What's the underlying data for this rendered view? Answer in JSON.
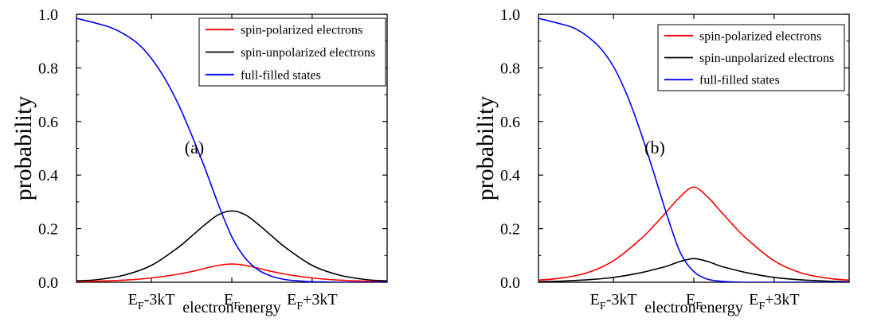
{
  "chart_data": [
    {
      "type": "line",
      "panel_label": "(a)",
      "xlabel": "electron energy",
      "ylabel": "probability",
      "x_unit": "kT",
      "xlim": [
        -5.8,
        5.8
      ],
      "ylim": [
        0,
        1.0
      ],
      "yticks": [
        0.0,
        0.2,
        0.4,
        0.6,
        0.8,
        1.0
      ],
      "ytick_labels": [
        "0.0",
        "0.2",
        "0.4",
        "0.6",
        "0.8",
        "1.0"
      ],
      "xticks": [
        {
          "x": -3,
          "base": "E",
          "sub": "F",
          "suffix": "-3kT"
        },
        {
          "x": 0,
          "base": "E",
          "sub": "F",
          "suffix": ""
        },
        {
          "x": 3,
          "base": "E",
          "sub": "F",
          "suffix": "+3kT"
        }
      ],
      "legend_position": "top-right",
      "series": [
        {
          "name": "spin-polarized electrons",
          "color": "#ff0000",
          "x": [
            -5.8,
            -5,
            -4,
            -3,
            -2,
            -1.5,
            -1,
            -0.5,
            0,
            0.5,
            1,
            1.5,
            2,
            3,
            4,
            5,
            5.8
          ],
          "y": [
            0.002,
            0.004,
            0.008,
            0.016,
            0.03,
            0.04,
            0.052,
            0.063,
            0.068,
            0.063,
            0.052,
            0.04,
            0.03,
            0.016,
            0.008,
            0.004,
            0.002
          ]
        },
        {
          "name": "spin-unpolarized electrons",
          "color": "#000000",
          "x": [
            -5.8,
            -5,
            -4,
            -3,
            -2,
            -1.5,
            -1,
            -0.5,
            0,
            0.5,
            1,
            1.5,
            2,
            3,
            4,
            5,
            5.8
          ],
          "y": [
            0.005,
            0.01,
            0.027,
            0.063,
            0.13,
            0.172,
            0.215,
            0.252,
            0.266,
            0.252,
            0.215,
            0.172,
            0.13,
            0.063,
            0.027,
            0.01,
            0.005
          ]
        },
        {
          "name": "full-filled states",
          "color": "#0000ff",
          "x": [
            -5.8,
            -5,
            -4.5,
            -4,
            -3.5,
            -3,
            -2.5,
            -2,
            -1.5,
            -1,
            -0.5,
            0,
            0.5,
            1,
            1.5,
            2,
            2.5,
            3,
            3.5,
            4,
            5,
            5.8
          ],
          "y": [
            0.985,
            0.965,
            0.95,
            0.925,
            0.89,
            0.835,
            0.76,
            0.665,
            0.55,
            0.425,
            0.29,
            0.17,
            0.09,
            0.045,
            0.022,
            0.01,
            0.005,
            0.002,
            0.001,
            0.0,
            0.0,
            0.0
          ]
        }
      ]
    },
    {
      "type": "line",
      "panel_label": "(b)",
      "xlabel": "electron energy",
      "ylabel": "probability",
      "x_unit": "kT",
      "xlim": [
        -5.8,
        5.8
      ],
      "ylim": [
        0,
        1.0
      ],
      "yticks": [
        0.0,
        0.2,
        0.4,
        0.6,
        0.8,
        1.0
      ],
      "ytick_labels": [
        "0.0",
        "0.2",
        "0.4",
        "0.6",
        "0.8",
        "1.0"
      ],
      "xticks": [
        {
          "x": -3,
          "base": "E",
          "sub": "F",
          "suffix": "-3kT"
        },
        {
          "x": 0,
          "base": "E",
          "sub": "F",
          "suffix": ""
        },
        {
          "x": 3,
          "base": "E",
          "sub": "F",
          "suffix": "+3kT"
        }
      ],
      "legend_position": "top-right",
      "series": [
        {
          "name": "spin-polarized electrons",
          "color": "#ff0000",
          "x": [
            -5.8,
            -5,
            -4,
            -3,
            -2,
            -1.5,
            -1,
            -0.5,
            0,
            0.5,
            1,
            1.5,
            2,
            3,
            4,
            5,
            5.8
          ],
          "y": [
            0.008,
            0.015,
            0.035,
            0.08,
            0.16,
            0.21,
            0.265,
            0.32,
            0.355,
            0.32,
            0.265,
            0.21,
            0.16,
            0.08,
            0.035,
            0.015,
            0.008
          ]
        },
        {
          "name": "spin-unpolarized electrons",
          "color": "#000000",
          "x": [
            -5.8,
            -5,
            -4,
            -3,
            -2,
            -1.5,
            -1,
            -0.5,
            0,
            0.5,
            1,
            1.5,
            2,
            3,
            4,
            5,
            5.8
          ],
          "y": [
            0.002,
            0.004,
            0.009,
            0.018,
            0.035,
            0.047,
            0.06,
            0.078,
            0.088,
            0.078,
            0.06,
            0.047,
            0.035,
            0.018,
            0.009,
            0.004,
            0.002
          ]
        },
        {
          "name": "full-filled states",
          "color": "#0000ff",
          "x": [
            -5.8,
            -5,
            -4.5,
            -4,
            -3.5,
            -3,
            -2.5,
            -2,
            -1.5,
            -1,
            -0.5,
            0,
            0.5,
            1,
            1.5,
            2,
            3,
            4,
            5,
            5.8
          ],
          "y": [
            0.985,
            0.965,
            0.95,
            0.92,
            0.875,
            0.805,
            0.7,
            0.565,
            0.41,
            0.25,
            0.11,
            0.04,
            0.012,
            0.004,
            0.001,
            0.0,
            0.0,
            0.0,
            0.0,
            0.0
          ]
        }
      ]
    }
  ]
}
